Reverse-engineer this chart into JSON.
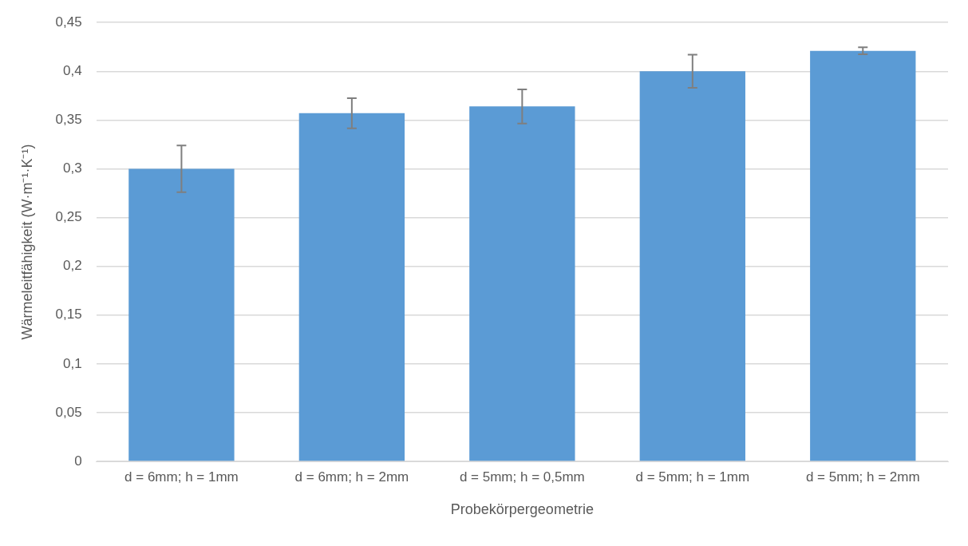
{
  "chart_data": {
    "type": "bar",
    "xlabel": "Probekörpergeometrie",
    "ylabel": "Wärmeleitfähigkeit (W·m⁻¹·K⁻¹)",
    "categories": [
      "d = 6mm; h = 1mm",
      "d = 6mm; h = 2mm",
      "d = 5mm; h = 0,5mm",
      "d = 5mm; h = 1mm",
      "d = 5mm; h = 2mm"
    ],
    "values": [
      0.3,
      0.357,
      0.364,
      0.4,
      0.421
    ],
    "errors": [
      0.024,
      0.0155,
      0.0175,
      0.017,
      0.0035
    ],
    "color": "#5b9bd5",
    "ylim": [
      0,
      0.45
    ],
    "yticks": [
      {
        "value": 0,
        "label": "0"
      },
      {
        "value": 0.05,
        "label": "0,05"
      },
      {
        "value": 0.1,
        "label": "0,1"
      },
      {
        "value": 0.15,
        "label": "0,15"
      },
      {
        "value": 0.2,
        "label": "0,2"
      },
      {
        "value": 0.25,
        "label": "0,25"
      },
      {
        "value": 0.3,
        "label": "0,3"
      },
      {
        "value": 0.35,
        "label": "0,35"
      },
      {
        "value": 0.4,
        "label": "0,4"
      },
      {
        "value": 0.45,
        "label": "0,45"
      }
    ],
    "grid": "y",
    "legend": false
  }
}
